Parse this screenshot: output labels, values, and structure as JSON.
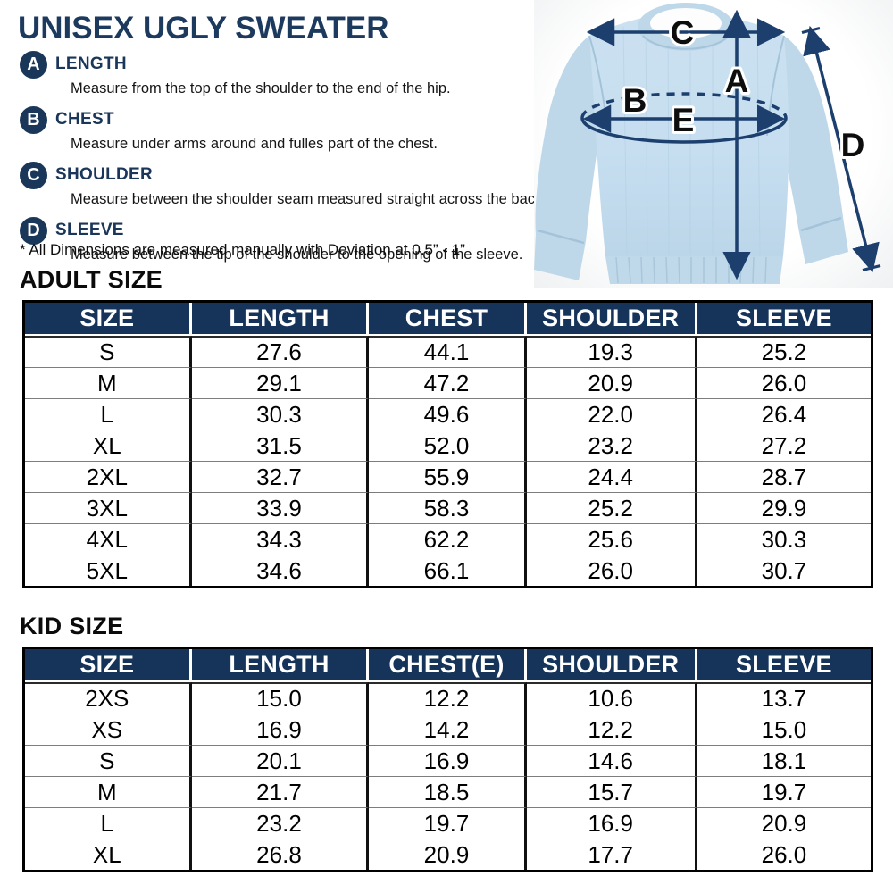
{
  "title": "UNISEX UGLY SWEATER",
  "measurements": [
    {
      "letter": "A",
      "name": "LENGTH",
      "description": "Measure from the top of the shoulder to the end of the hip."
    },
    {
      "letter": "B",
      "name": "CHEST",
      "description": "Measure under arms around and fulles part of the chest."
    },
    {
      "letter": "C",
      "name": "SHOULDER",
      "description": "Measure between the shoulder seam measured straight across the back."
    },
    {
      "letter": "D",
      "name": "SLEEVE",
      "description": "Measure between the tip of the shoulder to the opening of the sleeve."
    }
  ],
  "note": "* All Dimensions are measured manually with Deviation at 0.5” - 1”",
  "diagram": {
    "labels": {
      "a": "A",
      "b": "B",
      "c": "C",
      "d": "D",
      "e": "E"
    }
  },
  "adult": {
    "heading": "ADULT SIZE",
    "columns": [
      "SIZE",
      "LENGTH",
      "CHEST",
      "SHOULDER",
      "SLEEVE"
    ],
    "rows": [
      [
        "S",
        "27.6",
        "44.1",
        "19.3",
        "25.2"
      ],
      [
        "M",
        "29.1",
        "47.2",
        "20.9",
        "26.0"
      ],
      [
        "L",
        "30.3",
        "49.6",
        "22.0",
        "26.4"
      ],
      [
        "XL",
        "31.5",
        "52.0",
        "23.2",
        "27.2"
      ],
      [
        "2XL",
        "32.7",
        "55.9",
        "24.4",
        "28.7"
      ],
      [
        "3XL",
        "33.9",
        "58.3",
        "25.2",
        "29.9"
      ],
      [
        "4XL",
        "34.3",
        "62.2",
        "25.6",
        "30.3"
      ],
      [
        "5XL",
        "34.6",
        "66.1",
        "26.0",
        "30.7"
      ]
    ]
  },
  "kid": {
    "heading": "KID SIZE",
    "columns": [
      "SIZE",
      "LENGTH",
      "CHEST(E)",
      "SHOULDER",
      "SLEEVE"
    ],
    "rows": [
      [
        "2XS",
        "15.0",
        "12.2",
        "10.6",
        "13.7"
      ],
      [
        "XS",
        "16.9",
        "14.2",
        "12.2",
        "15.0"
      ],
      [
        "S",
        "20.1",
        "16.9",
        "14.6",
        "18.1"
      ],
      [
        "M",
        "21.7",
        "18.5",
        "15.7",
        "19.7"
      ],
      [
        "L",
        "23.2",
        "19.7",
        "16.9",
        "20.9"
      ],
      [
        "XL",
        "26.8",
        "20.9",
        "17.7",
        "26.0"
      ]
    ]
  },
  "colors": {
    "navy": "#1a3659",
    "table_header": "#16345a",
    "arrow": "#1c3f6e",
    "sweater_body": "#c8dff0",
    "sweater_shade": "#b9d4e8"
  }
}
